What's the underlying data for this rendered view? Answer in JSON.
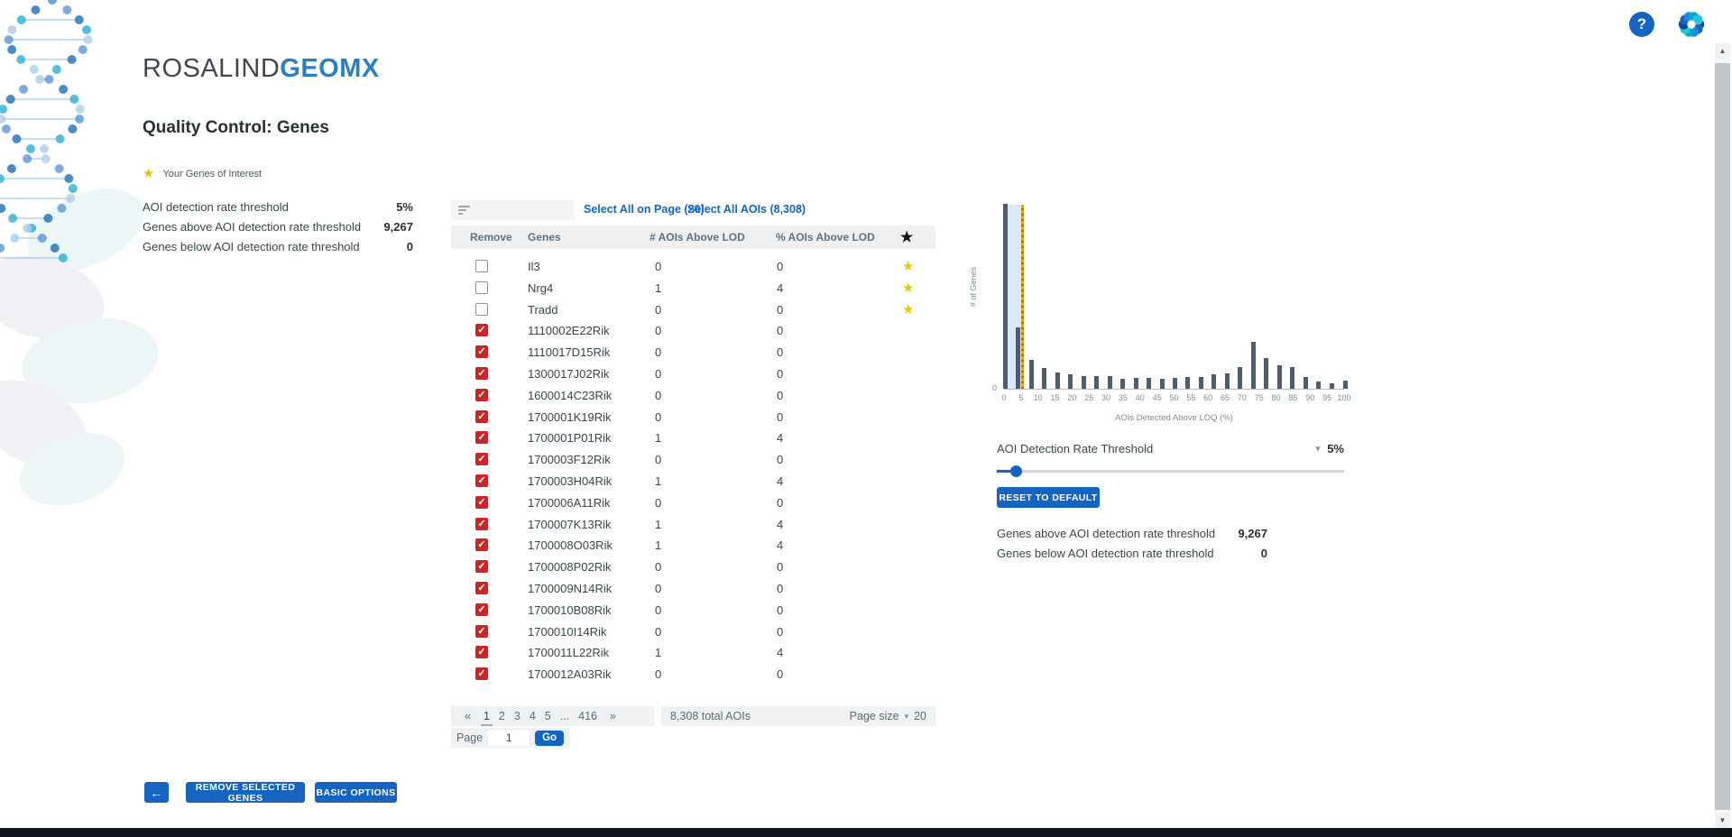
{
  "app": {
    "brand_primary": "ROSALIND",
    "brand_secondary": "GEOMX",
    "page_title": "Quality Control: Genes"
  },
  "header_icons": {
    "help": "?",
    "settings": "settings"
  },
  "legend": {
    "star_label": "Your Genes of Interest"
  },
  "summary_left": {
    "rows": [
      {
        "label": "AOI detection rate threshold",
        "value": "5%"
      },
      {
        "label": "Genes above AOI detection rate threshold",
        "value": "9,267"
      },
      {
        "label": "Genes below AOI detection rate threshold",
        "value": "0"
      }
    ]
  },
  "table": {
    "select_all_page": "Select All on Page (20)",
    "select_all_aois": "Select All AOIs (8,308)",
    "columns": {
      "remove": "Remove",
      "genes": "Genes",
      "num": "# AOIs Above LOD",
      "pct": "% AOIs Above LOD",
      "star": "★"
    },
    "rows": [
      {
        "gene": "Il3",
        "num": "0",
        "pct": "0",
        "checked": false,
        "starred": true
      },
      {
        "gene": "Nrg4",
        "num": "1",
        "pct": "4",
        "checked": false,
        "starred": true
      },
      {
        "gene": "Tradd",
        "num": "0",
        "pct": "0",
        "checked": false,
        "starred": true
      },
      {
        "gene": "1110002E22Rik",
        "num": "0",
        "pct": "0",
        "checked": true,
        "starred": false
      },
      {
        "gene": "1110017D15Rik",
        "num": "0",
        "pct": "0",
        "checked": true,
        "starred": false
      },
      {
        "gene": "1300017J02Rik",
        "num": "0",
        "pct": "0",
        "checked": true,
        "starred": false
      },
      {
        "gene": "1600014C23Rik",
        "num": "0",
        "pct": "0",
        "checked": true,
        "starred": false
      },
      {
        "gene": "1700001K19Rik",
        "num": "0",
        "pct": "0",
        "checked": true,
        "starred": false
      },
      {
        "gene": "1700001P01Rik",
        "num": "1",
        "pct": "4",
        "checked": true,
        "starred": false
      },
      {
        "gene": "1700003F12Rik",
        "num": "0",
        "pct": "0",
        "checked": true,
        "starred": false
      },
      {
        "gene": "1700003H04Rik",
        "num": "1",
        "pct": "4",
        "checked": true,
        "starred": false
      },
      {
        "gene": "1700006A11Rik",
        "num": "0",
        "pct": "0",
        "checked": true,
        "starred": false
      },
      {
        "gene": "1700007K13Rik",
        "num": "1",
        "pct": "4",
        "checked": true,
        "starred": false
      },
      {
        "gene": "1700008O03Rik",
        "num": "1",
        "pct": "4",
        "checked": true,
        "starred": false
      },
      {
        "gene": "1700008P02Rik",
        "num": "0",
        "pct": "0",
        "checked": true,
        "starred": false
      },
      {
        "gene": "1700009N14Rik",
        "num": "0",
        "pct": "0",
        "checked": true,
        "starred": false
      },
      {
        "gene": "1700010B08Rik",
        "num": "0",
        "pct": "0",
        "checked": true,
        "starred": false
      },
      {
        "gene": "1700010I14Rik",
        "num": "0",
        "pct": "0",
        "checked": true,
        "starred": false
      },
      {
        "gene": "1700011L22Rik",
        "num": "1",
        "pct": "4",
        "checked": true,
        "starred": false
      },
      {
        "gene": "1700012A03Rik",
        "num": "0",
        "pct": "0",
        "checked": true,
        "starred": false
      }
    ]
  },
  "pagination": {
    "first": "«",
    "last": "»",
    "pages": [
      "1",
      "2",
      "3",
      "4",
      "5",
      "...",
      "416"
    ],
    "active": "1",
    "total_label": "8,308 total AOIs",
    "page_size_label": "Page size",
    "page_size_caret": "▾",
    "page_size_value": "20",
    "page_label": "Page",
    "page_value": "1",
    "go_label": "Go"
  },
  "chart_data": {
    "type": "bar",
    "title": "",
    "xlabel": "AOIs Detected Above LOQ (%)",
    "ylabel": "# of Genes",
    "x_tick_labels": [
      "0",
      "5",
      "10",
      "15",
      "20",
      "25",
      "30",
      "35",
      "40",
      "45",
      "50",
      "55",
      "60",
      "65",
      "70",
      "75",
      "80",
      "85",
      "90",
      "95",
      "100"
    ],
    "y_tick_labels": [
      "0"
    ],
    "xlim": [
      0,
      100
    ],
    "bin_x_percent": [
      0,
      3.8,
      7.7,
      11.5,
      15.4,
      19.2,
      23.1,
      26.9,
      30.8,
      34.6,
      38.5,
      42.3,
      46.2,
      50,
      53.8,
      57.7,
      61.5,
      65.4,
      69.2,
      73.1,
      76.9,
      80.8,
      84.6,
      88.5,
      92.3,
      96.2,
      100
    ],
    "bar_heights_pct_of_plot": [
      100,
      33,
      15.6,
      11,
      9,
      7.7,
      7,
      6.9,
      6.9,
      5.4,
      5.7,
      5.7,
      5.2,
      5.7,
      6.2,
      6.2,
      7.9,
      8.5,
      11.5,
      25.4,
      16.4,
      12.8,
      11.5,
      6.2,
      3.8,
      3,
      4.6
    ],
    "note": "first bar clipped at top of plot; y-axis shows only 0",
    "threshold_line_x": 5,
    "shaded_region_x": [
      0,
      5
    ],
    "grid": false,
    "legend_position": "none"
  },
  "threshold": {
    "label": "AOI Detection Rate Threshold",
    "caret": "▾",
    "value": "5%",
    "percent": 5,
    "reset_label": "RESET TO DEFAULT"
  },
  "summary_right": {
    "rows": [
      {
        "label": "Genes above AOI detection rate threshold",
        "value": "9,267"
      },
      {
        "label": "Genes below AOI detection rate threshold",
        "value": "0"
      }
    ]
  },
  "actions": {
    "back": "←",
    "remove": "REMOVE SELECTED GENES",
    "basic": "BASIC OPTIONS"
  },
  "scrollbar": {
    "up": "▲",
    "down": "▼"
  },
  "colors": {
    "accent_blue": "#1565c0",
    "brand_blue": "#2b7fc3",
    "checkbox_red": "#c62828",
    "star_gold": "#e3c414",
    "bar": "#4d5d6d",
    "threshold_line": "#e8a21d",
    "shaded_region": "#dbe9f7",
    "footer": "#10151c"
  }
}
